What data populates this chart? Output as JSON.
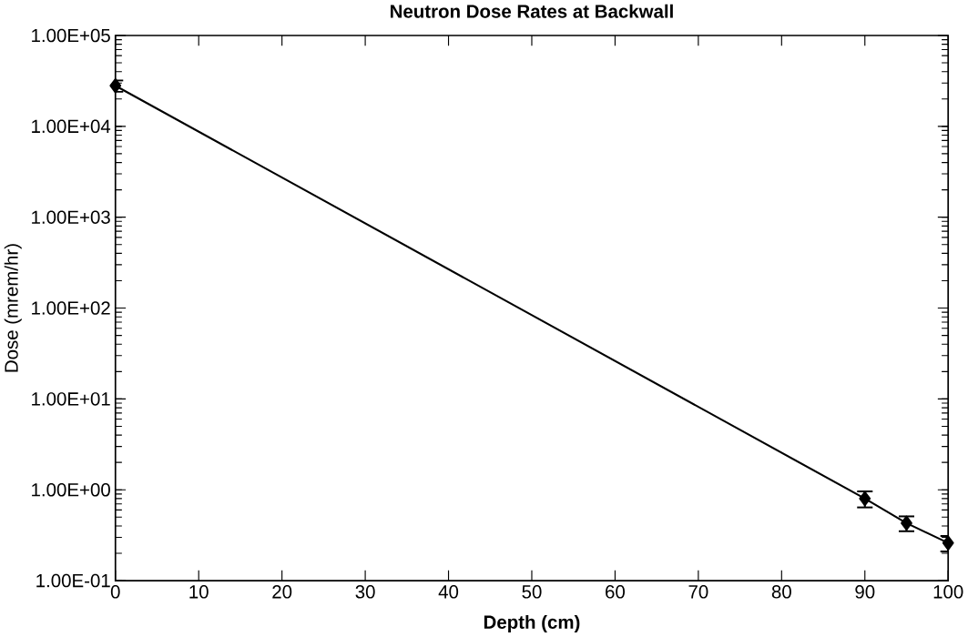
{
  "chart_data": {
    "type": "line",
    "title": "Neutron Dose Rates at Backwall",
    "xlabel": "Depth (cm)",
    "ylabel": "Dose (mrem/hr)",
    "x": [
      0,
      90,
      95,
      100
    ],
    "series": [
      {
        "color": "#000000",
        "values": [
          28000,
          0.8,
          0.43,
          0.26
        ],
        "errors": [
          4000,
          0.16,
          0.08,
          0.05
        ]
      }
    ],
    "log": "y",
    "marker": "diamond",
    "line_style": "solid",
    "xlim": [
      0,
      100
    ],
    "xticks": [
      0,
      10,
      20,
      30,
      40,
      50,
      60,
      70,
      80,
      90,
      100
    ],
    "ylim": [
      0.1,
      100000
    ],
    "yticks": [
      {
        "value": 0.1,
        "label": "1.00E-01"
      },
      {
        "value": 1,
        "label": "1.00E+00"
      },
      {
        "value": 10,
        "label": "1.00E+01"
      },
      {
        "value": 100,
        "label": "1.00E+02"
      },
      {
        "value": 1000,
        "label": "1.00E+03"
      },
      {
        "value": 10000,
        "label": "1.00E+04"
      },
      {
        "value": 100000,
        "label": "1.00E+05"
      }
    ]
  }
}
